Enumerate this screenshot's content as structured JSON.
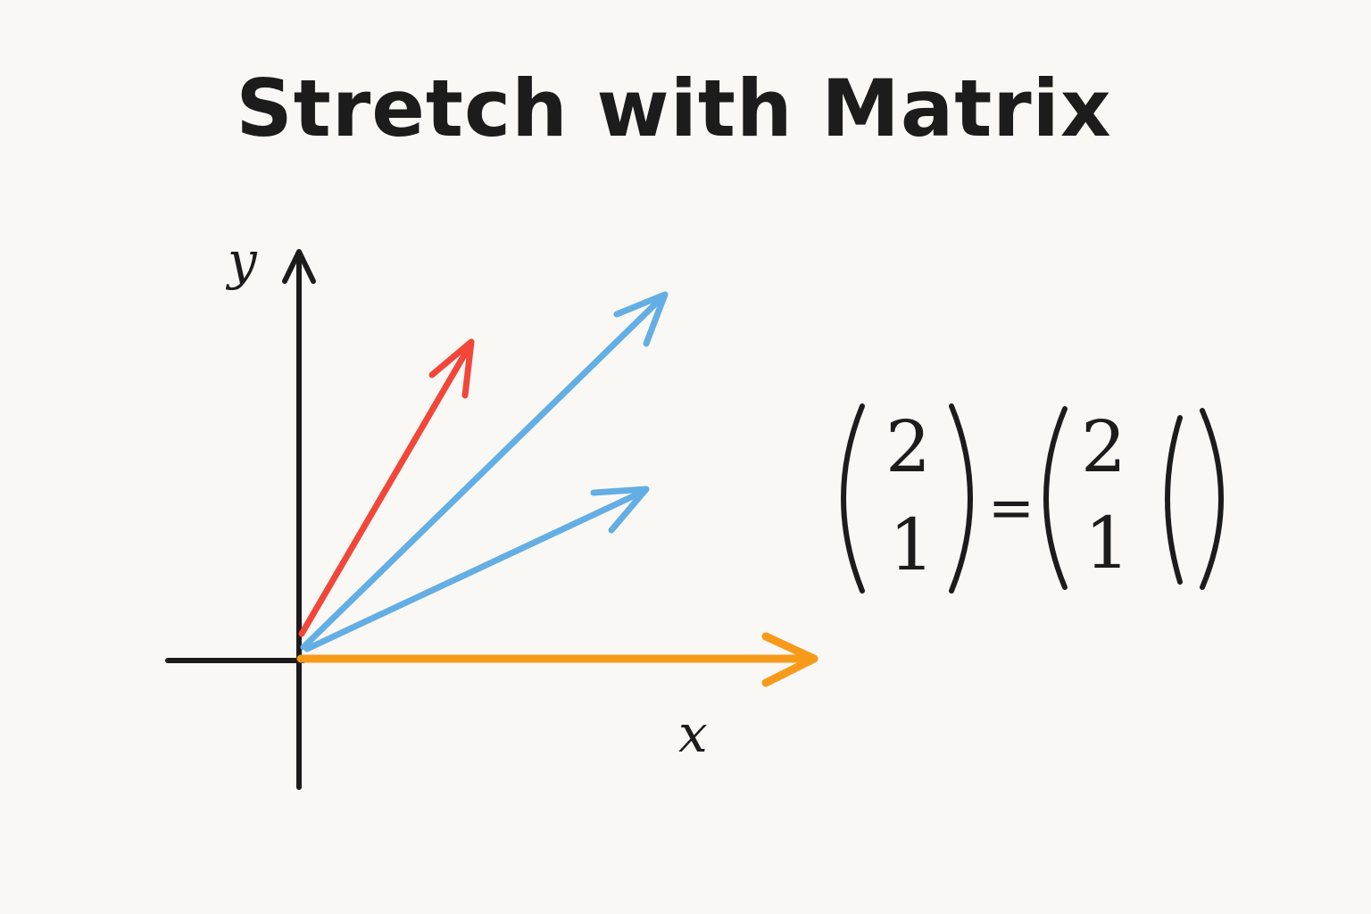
{
  "title": "Stretch with Matrix",
  "axes": {
    "x_label": "x",
    "y_label": "y",
    "color": "#1C1C1C"
  },
  "vectors": [
    {
      "name": "red-vector",
      "color": "#F2463A"
    },
    {
      "name": "blue-vector-long",
      "color": "#63AEE4"
    },
    {
      "name": "blue-vector-short",
      "color": "#63AEE4"
    },
    {
      "name": "orange-vector",
      "color": "#F79A1A"
    }
  ],
  "equation": {
    "left_vector": {
      "top": "2",
      "bottom": "1"
    },
    "equals": "=",
    "right_vector": {
      "top": "2",
      "bottom": "1"
    }
  }
}
